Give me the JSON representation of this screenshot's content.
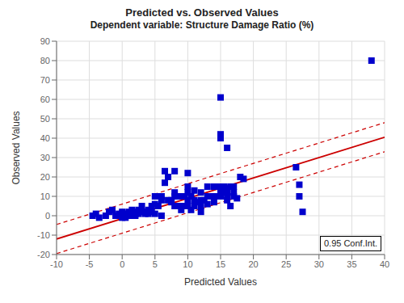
{
  "chart_data": {
    "type": "scatter",
    "title": "Predicted vs. Observed Values",
    "subtitle": "Dependent variable: Structure Damage Ratio (%)",
    "x_label": "Predicted Values",
    "y_label": "Observed Values",
    "xlim": [
      -10,
      40
    ],
    "ylim": [
      -20,
      90
    ],
    "xticks": [
      -10,
      -5,
      0,
      5,
      10,
      15,
      20,
      25,
      30,
      35,
      40
    ],
    "yticks": [
      -20,
      -10,
      0,
      10,
      20,
      30,
      40,
      50,
      60,
      70,
      80,
      90
    ],
    "grid": true,
    "annotation": "0.95 Conf.Int.",
    "series": [
      {
        "type": "scatter",
        "marker": "square",
        "color": "#0000CC",
        "x": [
          -4.5,
          -4.0,
          -3.5,
          -2.5,
          -2.0,
          -1.5,
          -1.0,
          -0.5,
          0.0,
          0.0,
          0.0,
          0.0,
          0.5,
          0.5,
          0.5,
          1.0,
          1.0,
          1.0,
          1.5,
          1.5,
          2.0,
          2.0,
          2.0,
          2.5,
          2.5,
          3.0,
          3.0,
          3.5,
          3.5,
          4.0,
          4.0,
          4.5,
          4.5,
          5.0,
          5.0,
          5.0,
          5.5,
          5.5,
          6.0,
          6.0,
          6.0,
          6.5,
          6.5,
          7.0,
          7.0,
          7.5,
          7.5,
          8.0,
          8.0,
          8.0,
          8.0,
          8.5,
          8.5,
          9.0,
          9.0,
          9.0,
          9.5,
          9.5,
          10.0,
          10.0,
          10.0,
          10.0,
          10.0,
          10.5,
          10.5,
          11.0,
          11.0,
          11.0,
          11.5,
          12.0,
          12.0,
          12.0,
          12.0,
          12.5,
          13.0,
          13.0,
          13.0,
          13.5,
          14.0,
          14.0,
          14.0,
          14.5,
          14.5,
          15.0,
          15.0,
          15.0,
          15.0,
          15.0,
          15.5,
          15.5,
          16.0,
          16.0,
          16.0,
          16.0,
          16.5,
          16.5,
          17.0,
          17.0,
          17.5,
          18.0,
          15.0,
          16.0,
          17.0,
          18.5,
          26.5,
          27.0,
          27.0,
          27.5,
          38.0
        ],
        "values": [
          0.0,
          1.0,
          -1.0,
          0.0,
          2.0,
          3.0,
          0.0,
          1.0,
          -1.0,
          0.0,
          1.0,
          2.0,
          -1.0,
          0.0,
          1.0,
          0.0,
          1.0,
          2.0,
          0.0,
          3.0,
          0.0,
          1.0,
          2.0,
          1.0,
          3.0,
          2.0,
          5.0,
          1.0,
          2.0,
          1.0,
          3.0,
          2.0,
          5.0,
          1.0,
          6.0,
          10.0,
          5.0,
          10.0,
          0.0,
          8.0,
          10.0,
          17.0,
          23.0,
          8.0,
          20.0,
          7.0,
          8.0,
          5.0,
          10.0,
          12.0,
          23.0,
          5.0,
          10.0,
          3.0,
          5.0,
          10.0,
          5.0,
          10.0,
          5.0,
          8.0,
          12.0,
          15.0,
          22.0,
          3.0,
          10.0,
          5.0,
          8.0,
          13.0,
          7.0,
          2.0,
          5.0,
          8.0,
          12.0,
          8.0,
          6.0,
          10.0,
          15.0,
          10.0,
          7.0,
          10.0,
          15.0,
          10.0,
          15.0,
          10.0,
          13.0,
          15.0,
          40.0,
          42.0,
          12.0,
          15.0,
          8.0,
          10.0,
          14.0,
          35.0,
          5.0,
          15.0,
          10.0,
          15.0,
          9.0,
          20.0,
          61.0,
          12.0,
          12.0,
          19.0,
          25.0,
          10.0,
          16.0,
          2.0,
          80.0
        ]
      },
      {
        "type": "line",
        "line_style": "solid",
        "color": "#CC0000",
        "x": [
          -10,
          40
        ],
        "values": [
          -12.0,
          40.5
        ]
      },
      {
        "type": "line",
        "line_style": "dashed",
        "color": "#CC0000",
        "x": [
          -10,
          40
        ],
        "values": [
          -4.5,
          48.0
        ]
      },
      {
        "type": "line",
        "line_style": "dashed",
        "color": "#CC0000",
        "x": [
          -10,
          40
        ],
        "values": [
          -19.5,
          33.0
        ]
      }
    ]
  }
}
